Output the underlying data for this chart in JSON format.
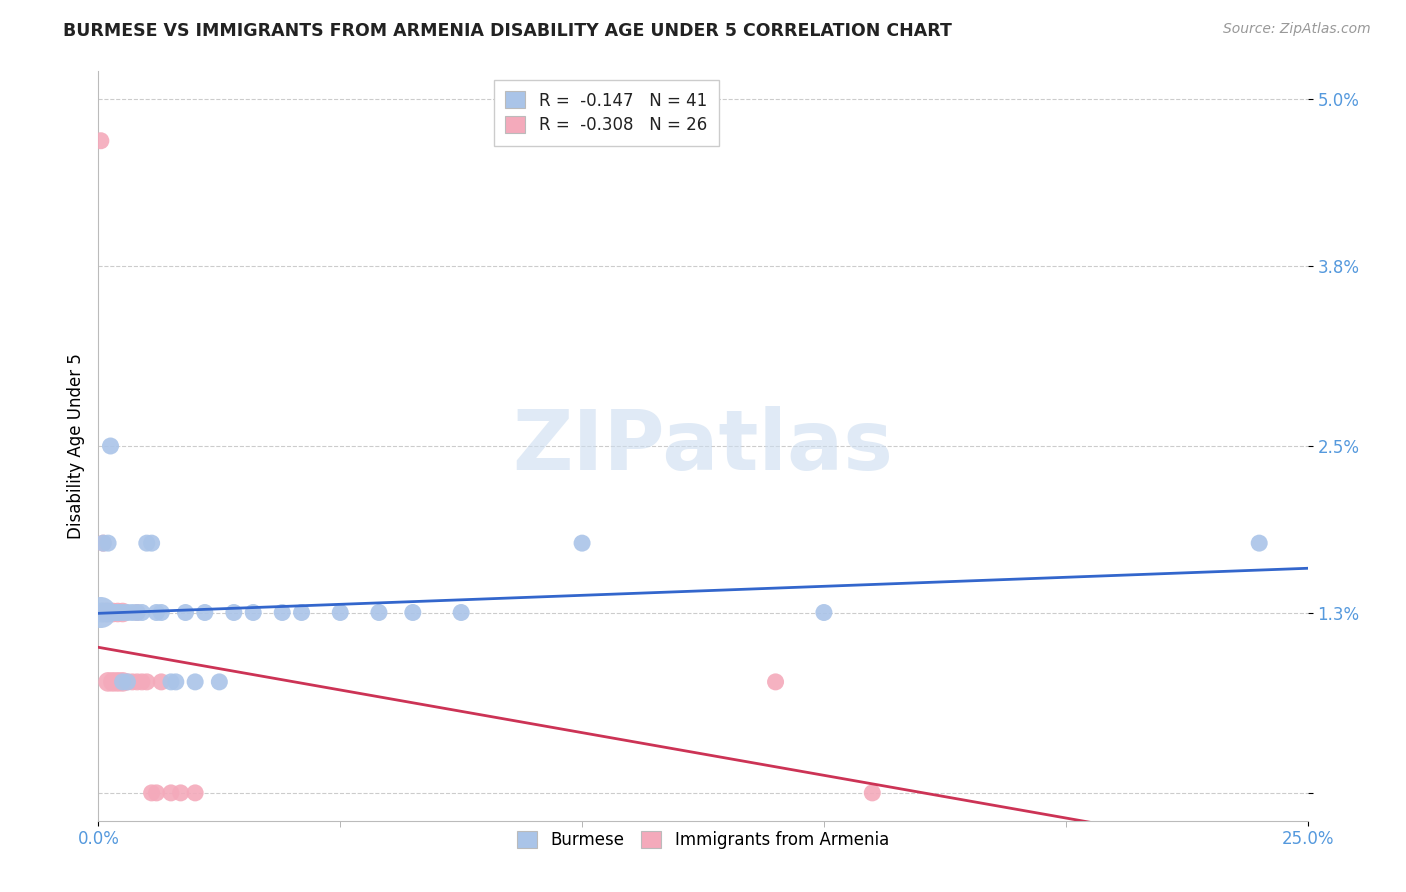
{
  "title": "BURMESE VS IMMIGRANTS FROM ARMENIA DISABILITY AGE UNDER 5 CORRELATION CHART",
  "source": "Source: ZipAtlas.com",
  "ylabel": "Disability Age Under 5",
  "xlim": [
    0.0,
    0.25
  ],
  "ylim": [
    -0.002,
    0.052
  ],
  "ytick_vals": [
    0.0,
    0.013,
    0.025,
    0.038,
    0.05
  ],
  "ytick_labels": [
    "",
    "1.3%",
    "2.5%",
    "3.8%",
    "5.0%"
  ],
  "xtick_vals": [
    0.0,
    0.25
  ],
  "xtick_labels": [
    "0.0%",
    "25.0%"
  ],
  "burmese_R": -0.147,
  "burmese_N": 41,
  "armenia_R": -0.308,
  "armenia_N": 26,
  "burmese_color": "#aac4e8",
  "burmese_line_color": "#3366cc",
  "armenia_color": "#f4aabb",
  "armenia_line_color": "#cc3355",
  "watermark_text": "ZIPatlas",
  "burmese_x": [
    0.0005,
    0.0005,
    0.001,
    0.001,
    0.0015,
    0.002,
    0.002,
    0.002,
    0.0025,
    0.003,
    0.003,
    0.004,
    0.004,
    0.005,
    0.005,
    0.006,
    0.006,
    0.007,
    0.008,
    0.009,
    0.01,
    0.011,
    0.012,
    0.013,
    0.015,
    0.016,
    0.018,
    0.02,
    0.022,
    0.025,
    0.028,
    0.032,
    0.038,
    0.042,
    0.05,
    0.058,
    0.065,
    0.075,
    0.1,
    0.15,
    0.24
  ],
  "burmese_y": [
    0.013,
    0.013,
    0.013,
    0.018,
    0.013,
    0.013,
    0.013,
    0.018,
    0.025,
    0.013,
    0.013,
    0.013,
    0.013,
    0.013,
    0.008,
    0.013,
    0.008,
    0.013,
    0.013,
    0.013,
    0.018,
    0.018,
    0.013,
    0.013,
    0.008,
    0.008,
    0.013,
    0.008,
    0.013,
    0.008,
    0.013,
    0.013,
    0.013,
    0.013,
    0.013,
    0.013,
    0.013,
    0.013,
    0.018,
    0.013,
    0.018
  ],
  "burmese_size": [
    500,
    200,
    200,
    150,
    150,
    200,
    150,
    150,
    150,
    150,
    150,
    150,
    150,
    150,
    150,
    150,
    150,
    150,
    150,
    150,
    150,
    150,
    150,
    150,
    150,
    150,
    150,
    150,
    150,
    150,
    150,
    150,
    150,
    150,
    150,
    150,
    150,
    150,
    150,
    150,
    150
  ],
  "armenia_x": [
    0.0005,
    0.001,
    0.001,
    0.0015,
    0.002,
    0.002,
    0.003,
    0.003,
    0.004,
    0.004,
    0.005,
    0.005,
    0.006,
    0.007,
    0.008,
    0.008,
    0.009,
    0.01,
    0.011,
    0.012,
    0.013,
    0.015,
    0.017,
    0.02,
    0.14,
    0.16
  ],
  "armenia_y": [
    0.047,
    0.018,
    0.013,
    0.013,
    0.013,
    0.008,
    0.013,
    0.008,
    0.013,
    0.008,
    0.013,
    0.008,
    0.008,
    0.008,
    0.013,
    0.008,
    0.008,
    0.008,
    0.0,
    0.0,
    0.008,
    0.0,
    0.0,
    0.0,
    0.008,
    0.0
  ],
  "armenia_size": [
    150,
    150,
    150,
    200,
    200,
    200,
    200,
    200,
    200,
    200,
    200,
    200,
    150,
    150,
    150,
    150,
    150,
    150,
    150,
    150,
    150,
    150,
    150,
    150,
    150,
    150
  ]
}
